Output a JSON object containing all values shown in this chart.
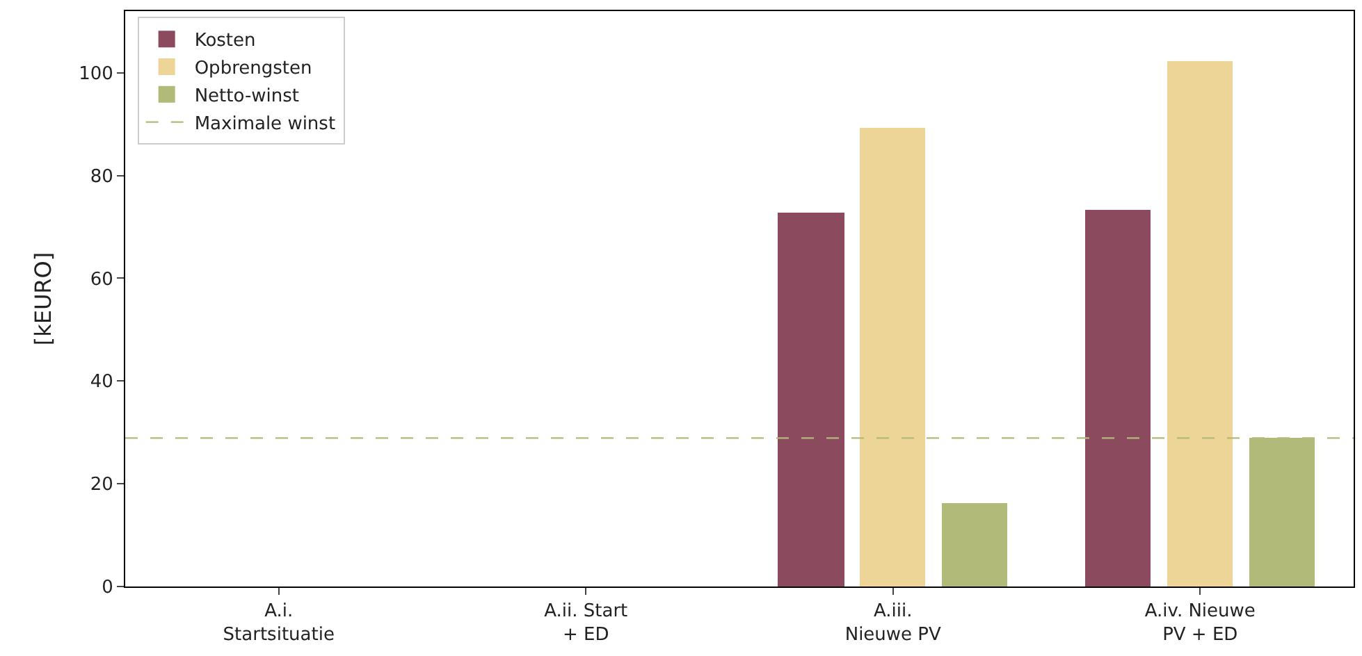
{
  "chart_data": {
    "type": "bar",
    "ylabel": "[kEURO]",
    "categories": [
      "A.i.\nStartsituatie",
      "A.ii. Start\n+ ED",
      "A.iii.\nNieuwe PV",
      "A.iv. Nieuwe\nPV + ED"
    ],
    "series": [
      {
        "name": "Kosten",
        "color": "#8b4a5e",
        "values": [
          null,
          null,
          72.7,
          73.2
        ]
      },
      {
        "name": "Opbrengsten",
        "color": "#edd598",
        "values": [
          null,
          null,
          89.2,
          102.2
        ]
      },
      {
        "name": "Netto-winst",
        "color": "#b1ba78",
        "values": [
          null,
          null,
          16.2,
          28.9
        ]
      }
    ],
    "ref_lines": [
      {
        "axis": "y",
        "value": 28.9,
        "label": "Maximale winst",
        "color": "#b1ba78",
        "line_style": "dashed"
      }
    ],
    "ylim": [
      0,
      112
    ],
    "yticks": [
      0,
      20,
      40,
      60,
      80,
      100
    ],
    "legend": "top left"
  }
}
